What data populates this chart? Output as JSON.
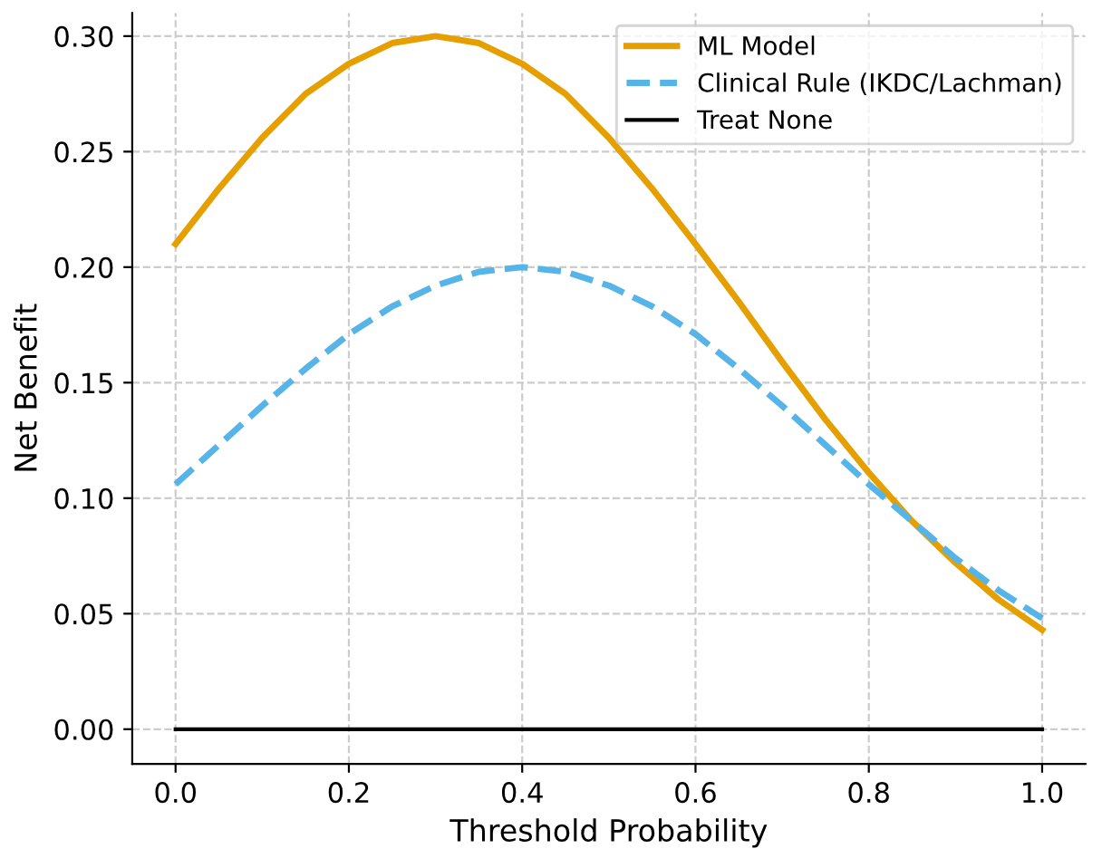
{
  "chart_data": {
    "type": "line",
    "xlabel": "Threshold Probability",
    "ylabel": "Net Benefit",
    "x": [
      0,
      0.05,
      0.1,
      0.15,
      0.2,
      0.25,
      0.3,
      0.35,
      0.4,
      0.45,
      0.5,
      0.55,
      0.6,
      0.65,
      0.7,
      0.75,
      0.8,
      0.85,
      0.9,
      0.95,
      1.0
    ],
    "series": [
      {
        "name": "ML Model",
        "color": "#e69f00",
        "line_style": "solid",
        "values": [
          0.21,
          0.234,
          0.256,
          0.275,
          0.288,
          0.297,
          0.3,
          0.297,
          0.288,
          0.275,
          0.256,
          0.234,
          0.21,
          0.185,
          0.159,
          0.134,
          0.111,
          0.09,
          0.072,
          0.056,
          0.043
        ]
      },
      {
        "name": "Clinical Rule (IKDC/Lachman)",
        "color": "#56b4e9",
        "line_style": "dashed",
        "values": [
          0.106,
          0.123,
          0.14,
          0.156,
          0.171,
          0.183,
          0.192,
          0.198,
          0.2,
          0.198,
          0.192,
          0.183,
          0.171,
          0.156,
          0.14,
          0.123,
          0.106,
          0.09,
          0.074,
          0.06,
          0.048
        ]
      },
      {
        "name": "Treat None",
        "color": "#000000",
        "line_style": "solid",
        "x": [
          0,
          1.0
        ],
        "values": [
          0,
          0
        ]
      }
    ],
    "xlim": [
      -0.05,
      1.05
    ],
    "ylim": [
      -0.015,
      0.31
    ],
    "xticks": [
      {
        "value": 0,
        "label": "0.0"
      },
      0.2,
      0.4,
      0.6,
      0.8,
      {
        "value": 1,
        "label": "1.0"
      }
    ],
    "yticks": [
      {
        "value": 0,
        "label": "0.00"
      },
      {
        "value": 0.05,
        "label": "0.05"
      },
      {
        "value": 0.1,
        "label": "0.10"
      },
      {
        "value": 0.15,
        "label": "0.15"
      },
      {
        "value": 0.2,
        "label": "0.20"
      },
      {
        "value": 0.25,
        "label": "0.25"
      },
      {
        "value": 0.3,
        "label": "0.30"
      }
    ],
    "grid": true,
    "legend": "top right"
  }
}
